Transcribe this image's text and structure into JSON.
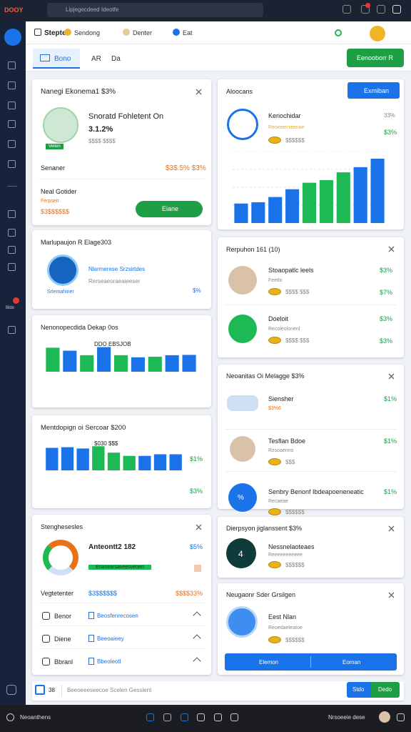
{
  "top_bar": {
    "logo": "DOOY",
    "search": "Lipjegecdeed Ideotfe"
  },
  "sidebar": {
    "badge_label": "Bldo"
  },
  "header": {
    "title": "Stepter",
    "links": [
      "Sendong",
      "Denter",
      "Eat"
    ]
  },
  "tabs": {
    "items": [
      "Bono",
      "AR",
      "Da"
    ],
    "action": "Eenooborr R"
  },
  "left_cards": [
    {
      "title": "Nanegi Ekonema1 $3%",
      "name": "Snoratd Fohletent On",
      "value": "3.1.2%",
      "sub": "$$$$ $$$$",
      "badge": "Veiten",
      "row1_label": "Senaner",
      "row1_value": "$3$.5% $3%",
      "row2_label": "Neal Gotider",
      "row2_sub": "Ferpseit",
      "row2_value": "$3$$$$$$",
      "button": "Eiane"
    },
    {
      "title": "Marlupaujon R Elage303",
      "line1": "Nlarmerese Srzsirtdes",
      "line2": "Rerseaeoraeaieeser",
      "tag": "Srlemahiner",
      "pct": "$%"
    },
    {
      "title": "Nenonopecdida Dekap 0os",
      "chart_label": "DDO EBSJOB",
      "chart": {
        "values": [
          80,
          70,
          55,
          82,
          55,
          48,
          50,
          55,
          56
        ],
        "colors": [
          "#1db954",
          "#1a73e8",
          "#1db954",
          "#1a73e8",
          "#1db954",
          "#1a73e8",
          "#1db954",
          "#1a73e8",
          "#1a73e8"
        ],
        "ylim": [
          0,
          100
        ]
      }
    },
    {
      "title": "Mentdopign oi Sercoar $200",
      "chart_label": "$030 $$$",
      "pct1": "$1%",
      "pct2": "$3%",
      "chart": {
        "values": [
          70,
          72,
          68,
          75,
          55,
          45,
          45,
          50,
          50
        ],
        "colors": [
          "#1a73e8",
          "#1a73e8",
          "#1a73e8",
          "#1db954",
          "#1db954",
          "#1db954",
          "#1a73e8",
          "#1a73e8",
          "#1a73e8"
        ],
        "ylim": [
          0,
          80
        ]
      }
    },
    {
      "title": "Stenghesesles",
      "name": "Anteontt2 182",
      "pct": "$5%",
      "bar_text": "Enanearsaveesvenen",
      "row_label": "Vegtetenter",
      "row_value": "$3$$$$$$",
      "row_value2": "$$$$33%",
      "list": [
        [
          "Benor",
          "Beosfenrecosen"
        ],
        [
          "Diene",
          "Beeoaieey"
        ],
        [
          "Bbranl",
          "Bbeoleotl"
        ]
      ]
    }
  ],
  "right_cards": [
    {
      "title": "Aloocans",
      "button": "Exmiban",
      "name": "Keriochidar",
      "pct": "33%",
      "sub": "Reoeeieniteeaie",
      "pct2": "$3%",
      "amount": "$$$$$$",
      "chart": {
        "values": [
          30,
          32,
          40,
          52,
          62,
          66,
          78,
          86,
          99
        ],
        "colors": [
          "#1a73e8",
          "#1a73e8",
          "#1a73e8",
          "#1a73e8",
          "#1db954",
          "#1db954",
          "#1db954",
          "#1a73e8",
          "#1a73e8"
        ],
        "ylim": [
          0,
          110
        ]
      }
    },
    {
      "title": "Rerpuhon 161 (10)",
      "rows": [
        {
          "name": "Stoaopatlc leels",
          "sub": "Feetlo",
          "amount": "$$$$ $$$",
          "pct": "$3%",
          "pct2": "$7%"
        },
        {
          "name": "Doeloit",
          "sub": "Recoleolonenl",
          "amount": "$$$$ $$$",
          "pct": "$3%",
          "pct2": "$3%"
        }
      ]
    },
    {
      "title": "Neoanitas Oi Melagge $3%",
      "rows": [
        {
          "name": "Siensher",
          "sub": "$3%6",
          "pct": "$1%"
        },
        {
          "name": "Tesflan Bdoe",
          "sub": "Rzsoaenno",
          "amount": "$$$",
          "pct": "$1%"
        },
        {
          "name": "Senbry Benonf Ibdeapoeneneatic",
          "sub": "Recaeae",
          "amount": "$$$$$$",
          "pct": "$1%",
          "icon_text": "%"
        }
      ]
    },
    {
      "title": "Dierpsyon jiglanssent $3%",
      "name": "Nessnelaoteaes",
      "sub": "Reeeeeeeeeee",
      "amount": "$$$$$$",
      "icon_text": "4"
    },
    {
      "title": "Neugaonr Sder Grsilgen",
      "name": "Eest Nlan",
      "sub": "Reoedaeteatoe",
      "amount": "$$$$$$",
      "buttons": [
        "Elemon",
        "Eoman"
      ]
    }
  ],
  "footer_input": {
    "label": "38",
    "placeholder": "Beeoeeeseecoe Scelen Gesslent",
    "buttons": [
      "Stdo",
      "Dedo"
    ]
  },
  "taskbar": {
    "left": "Neoanthens",
    "right": "Nrsoeeie dese"
  }
}
